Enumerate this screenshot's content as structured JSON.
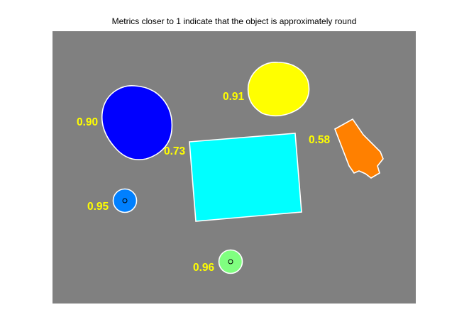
{
  "figure": {
    "title": "Metrics closer to 1 indicate that the object is approximately round"
  },
  "colors": {
    "background": "#808080",
    "boundary": "#ffffff",
    "label": "#ffff00",
    "centroid": "#000000"
  },
  "objects": [
    {
      "name": "dark-blue-blob",
      "metric": "0.90",
      "fill": "#0000ff"
    },
    {
      "name": "yellow-blob",
      "metric": "0.91",
      "fill": "#ffff00"
    },
    {
      "name": "cyan-rectangle",
      "metric": "0.73",
      "fill": "#00ffff"
    },
    {
      "name": "orange-pen-cap",
      "metric": "0.58",
      "fill": "#ff8000"
    },
    {
      "name": "blue-circle",
      "metric": "0.95",
      "fill": "#0080ff"
    },
    {
      "name": "green-circle",
      "metric": "0.96",
      "fill": "#80ff80"
    }
  ]
}
